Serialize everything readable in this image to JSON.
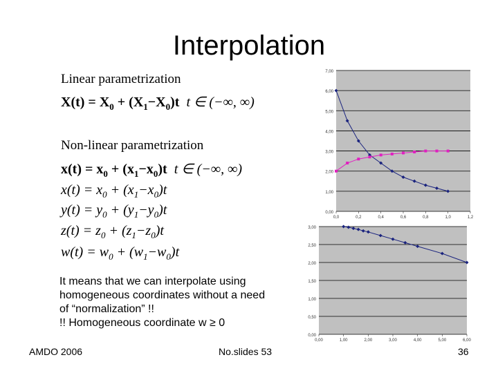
{
  "slide": {
    "title": "Interpolation",
    "linear_heading": "Linear parametrization",
    "linear_eq": {
      "lhs": "X(t) = X",
      "s0": "0",
      "mid": " + (X",
      "s1": "1",
      "mid2": "−X",
      "s2": "0",
      "rhs": ")t",
      "domain": "t ∈ (−∞, ∞)"
    },
    "nonlinear_heading": "Non-linear parametrization",
    "nonlinear_eq": {
      "lhs": "x(t) = x",
      "s0": "0",
      "mid": " + (x",
      "s1": "1",
      "mid2": "−x",
      "s2": "0",
      "rhs": ")t",
      "domain": "t ∈ (−∞, ∞)"
    },
    "eq_x": {
      "lhs": "x(t) = x",
      "s0": "0",
      "mid": " + (x",
      "s1": "1",
      "mid2": "−x",
      "s2": "0",
      "rhs": ")t"
    },
    "eq_y": {
      "lhs": "y(t) = y",
      "s0": "0",
      "mid": " + (y",
      "s1": "1",
      "mid2": "−y",
      "s2": "0",
      "rhs": ")t"
    },
    "eq_z": {
      "lhs": "z(t) = z",
      "s0": "0",
      "mid": " + (z",
      "s1": "1",
      "mid2": "−z",
      "s2": "0",
      "rhs": ")t"
    },
    "eq_w": {
      "lhs": "w(t) = w",
      "s0": "0",
      "mid": " + (w",
      "s1": "1",
      "mid2": "−w",
      "s2": "0",
      "rhs": ")t"
    },
    "note_lines": [
      "It means that we can interpolate using",
      "homogeneous coordinates without a need",
      "of “normalization” !!",
      "!! Homogeneous coordinate w ≥ 0"
    ],
    "footer_left": "AMDO 2006",
    "footer_center": "No.slides 53",
    "page_number": "36"
  },
  "chart_data": [
    {
      "type": "line",
      "x_ticks": [
        "0,0",
        "0,2",
        "0,4",
        "0,6",
        "0,8",
        "1,0",
        "1,2"
      ],
      "y_ticks": [
        "0,00",
        "1,00",
        "2,00",
        "3,00",
        "4,00",
        "5,00",
        "6,00",
        "7,00"
      ],
      "xlim": [
        0,
        1.2
      ],
      "ylim": [
        0,
        7
      ],
      "grid": "horizontal",
      "series": [
        {
          "color": "#1a237e",
          "marker": "diamond",
          "x": [
            0,
            0.1,
            0.2,
            0.3,
            0.4,
            0.5,
            0.6,
            0.7,
            0.8,
            0.9,
            1.0
          ],
          "y": [
            6.0,
            4.5,
            3.5,
            2.8,
            2.4,
            2.0,
            1.7,
            1.5,
            1.3,
            1.15,
            1.0
          ]
        },
        {
          "color": "#e020c0",
          "marker": "square",
          "x": [
            0,
            0.1,
            0.2,
            0.3,
            0.4,
            0.5,
            0.6,
            0.7,
            0.8,
            0.9,
            1.0
          ],
          "y": [
            2.0,
            2.4,
            2.6,
            2.7,
            2.8,
            2.85,
            2.9,
            2.95,
            3.0,
            3.0,
            3.0
          ]
        }
      ]
    },
    {
      "type": "line",
      "x_ticks": [
        "0,00",
        "1,00",
        "2,00",
        "3,00",
        "4,00",
        "5,00",
        "6,00"
      ],
      "y_ticks": [
        "0,00",
        "0,50",
        "1,00",
        "1,50",
        "2,00",
        "2,50",
        "3,00"
      ],
      "xlim": [
        0,
        6
      ],
      "ylim": [
        0,
        3
      ],
      "grid": "horizontal",
      "series": [
        {
          "color": "#1a237e",
          "marker": "diamond",
          "x": [
            1.0,
            1.2,
            1.4,
            1.6,
            1.8,
            2.0,
            2.5,
            3.0,
            3.5,
            4.0,
            5.0,
            6.0
          ],
          "y": [
            3.0,
            2.98,
            2.95,
            2.92,
            2.88,
            2.85,
            2.75,
            2.65,
            2.55,
            2.45,
            2.25,
            2.0
          ]
        }
      ]
    }
  ]
}
